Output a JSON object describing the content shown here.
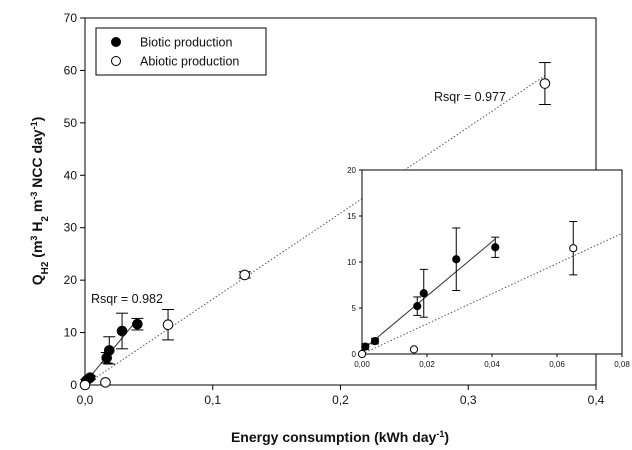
{
  "chart_data": {
    "type": "scatter",
    "xlabel": "Energy consumption (kWh day",
    "xlabel_sup": "-1",
    "xlabel_tail": ")",
    "ylabel": {
      "q": "Q",
      "qsub": "H2",
      "open": " (m",
      "sup1": "3",
      "h": " H",
      "hsub": "2",
      "m": " m",
      "sup2": "-3",
      "ncc": " NCC day",
      "sup3": "-1",
      "close": ")"
    },
    "xlim": [
      0,
      0.4
    ],
    "ylim": [
      0,
      70
    ],
    "xticks": [
      0,
      0.1,
      0.2,
      0.3,
      0.4
    ],
    "xtick_labels": [
      "0,0",
      "0,1",
      "0,2",
      "0,3",
      "0,4"
    ],
    "yticks": [
      0,
      10,
      20,
      30,
      40,
      50,
      60,
      70
    ],
    "ytick_labels": [
      "0",
      "10",
      "20",
      "30",
      "40",
      "50",
      "60",
      "70"
    ],
    "legend_position": "top-left",
    "grid": false,
    "series": [
      {
        "name": "Biotic production",
        "marker": "filled-circle",
        "points": [
          {
            "x": 0.001,
            "y": 0.8,
            "err": 0.3
          },
          {
            "x": 0.004,
            "y": 1.4,
            "err": 0.3
          },
          {
            "x": 0.017,
            "y": 5.2,
            "err": 1.0
          },
          {
            "x": 0.019,
            "y": 6.6,
            "err": 2.6
          },
          {
            "x": 0.029,
            "y": 10.3,
            "err": 3.4
          },
          {
            "x": 0.041,
            "y": 11.6,
            "err": 1.1
          }
        ],
        "fit": {
          "x1": 0.0,
          "y1": 0.4,
          "x2": 0.041,
          "y2": 12.5,
          "style": "solid",
          "r2_label": "Rsqr = 0.982"
        }
      },
      {
        "name": "Abiotic production",
        "marker": "open-circle",
        "points": [
          {
            "x": 0.0,
            "y": 0.0,
            "err": 0.0
          },
          {
            "x": 0.016,
            "y": 0.5,
            "err": 0.0
          },
          {
            "x": 0.065,
            "y": 11.5,
            "err": 2.9
          },
          {
            "x": 0.125,
            "y": 21.0,
            "err": 0.6
          },
          {
            "x": 0.36,
            "y": 57.5,
            "err": 4.0
          }
        ],
        "fit": {
          "x1": 0.0,
          "y1": 0.0,
          "x2": 0.36,
          "y2": 59.0,
          "style": "dotted",
          "r2_label": "Rsqr = 0.977"
        }
      }
    ],
    "inset": {
      "xlim": [
        0,
        0.08
      ],
      "ylim": [
        0,
        20
      ],
      "xticks": [
        0,
        0.02,
        0.04,
        0.06,
        0.08
      ],
      "xtick_labels": [
        "0,00",
        "0,02",
        "0,04",
        "0,06",
        "0,08"
      ],
      "yticks": [
        0,
        5,
        10,
        15,
        20
      ],
      "ytick_labels": [
        "0",
        "5",
        "10",
        "15",
        "20"
      ]
    }
  }
}
